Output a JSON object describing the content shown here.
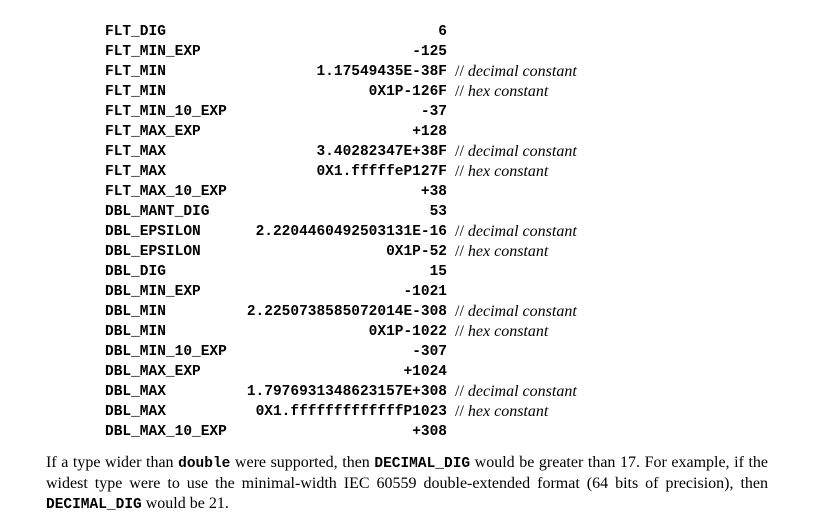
{
  "macros": [
    {
      "name": "FLT_DIG",
      "value": "6",
      "comment": ""
    },
    {
      "name": "FLT_MIN_EXP",
      "value": "-125",
      "comment": ""
    },
    {
      "name": "FLT_MIN",
      "value": "1.17549435E-38F",
      "comment": "decimal constant"
    },
    {
      "name": "FLT_MIN",
      "value": "0X1P-126F",
      "comment": "hex constant"
    },
    {
      "name": "FLT_MIN_10_EXP",
      "value": "-37",
      "comment": ""
    },
    {
      "name": "FLT_MAX_EXP",
      "value": "+128",
      "comment": ""
    },
    {
      "name": "FLT_MAX",
      "value": "3.40282347E+38F",
      "comment": "decimal constant"
    },
    {
      "name": "FLT_MAX",
      "value": "0X1.fffffeP127F",
      "comment": "hex constant"
    },
    {
      "name": "FLT_MAX_10_EXP",
      "value": "+38",
      "comment": ""
    },
    {
      "name": "DBL_MANT_DIG",
      "value": "53",
      "comment": ""
    },
    {
      "name": "DBL_EPSILON",
      "value": "2.2204460492503131E-16",
      "comment": "decimal constant"
    },
    {
      "name": "DBL_EPSILON",
      "value": "0X1P-52",
      "comment": "hex constant"
    },
    {
      "name": "DBL_DIG",
      "value": "15",
      "comment": ""
    },
    {
      "name": "DBL_MIN_EXP",
      "value": "-1021",
      "comment": ""
    },
    {
      "name": "DBL_MIN",
      "value": "2.2250738585072014E-308",
      "comment": "decimal constant"
    },
    {
      "name": "DBL_MIN",
      "value": "0X1P-1022",
      "comment": "hex constant"
    },
    {
      "name": "DBL_MIN_10_EXP",
      "value": "-307",
      "comment": ""
    },
    {
      "name": "DBL_MAX_EXP",
      "value": "+1024",
      "comment": ""
    },
    {
      "name": "DBL_MAX",
      "value": "1.7976931348623157E+308",
      "comment": "decimal constant"
    },
    {
      "name": "DBL_MAX",
      "value": "0X1.fffffffffffffP1023",
      "comment": "hex constant"
    },
    {
      "name": "DBL_MAX_10_EXP",
      "value": "+308",
      "comment": ""
    }
  ],
  "comment_prefix": "//",
  "paragraph": {
    "t1": "If a type wider than ",
    "c1": "double",
    "t2": " were supported, then ",
    "c2": "DECIMAL_DIG",
    "t3": " would be greater than 17. For example, if the widest type were to use the minimal-width IEC 60559 double-extended format (64 bits of precision), then ",
    "c3": "DECIMAL_DIG",
    "t4": " would be 21."
  }
}
